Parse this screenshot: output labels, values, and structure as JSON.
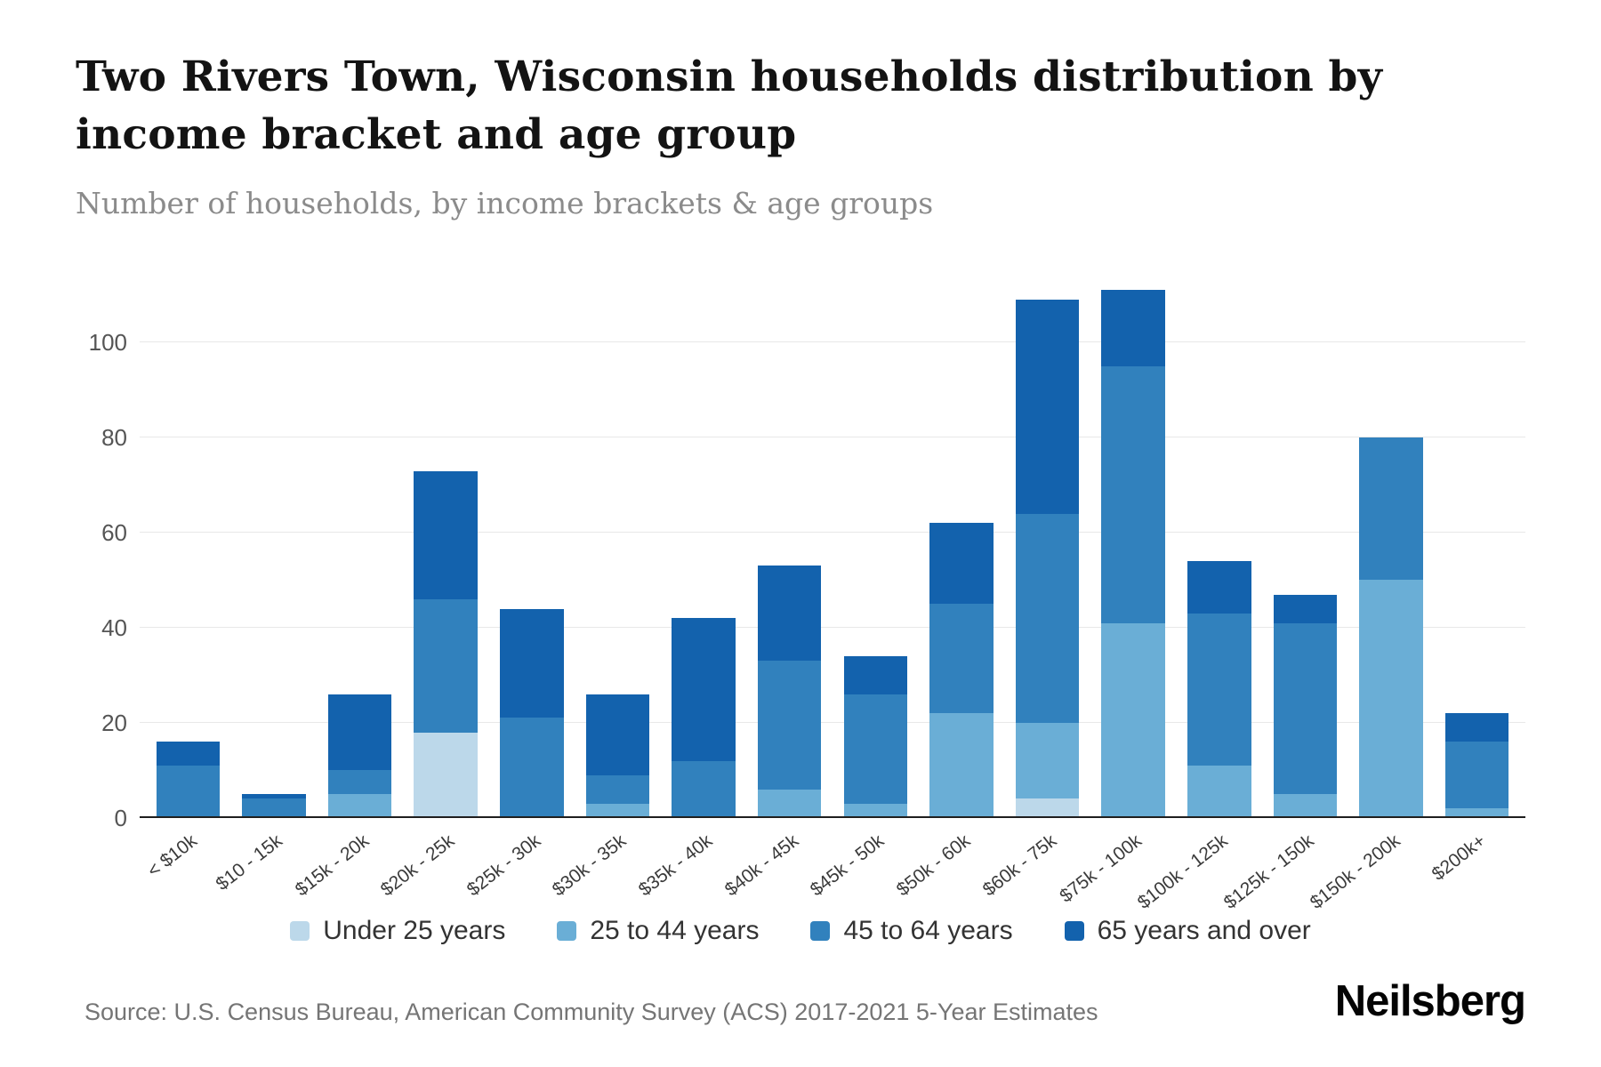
{
  "header": {
    "title": "Two Rivers Town, Wisconsin households distribution by income bracket and age group",
    "subtitle": "Number of households, by income brackets & age groups"
  },
  "footer": {
    "source": "Source: U.S. Census Bureau, American Community Survey (ACS) 2017-2021 5-Year Estimates",
    "logo": "Neilsberg"
  },
  "chart_data": {
    "type": "bar",
    "stacked": true,
    "title": "Two Rivers Town, Wisconsin households distribution by income bracket and age group",
    "subtitle": "Number of households, by income brackets & age groups",
    "xlabel": "",
    "ylabel": "",
    "ylim": [
      0,
      116
    ],
    "yticks": [
      0,
      20,
      40,
      60,
      80,
      100
    ],
    "grid": true,
    "legend_position": "bottom",
    "categories": [
      "< $10k",
      "$10 - 15k",
      "$15k - 20k",
      "$20k - 25k",
      "$25k - 30k",
      "$30k - 35k",
      "$35k - 40k",
      "$40k - 45k",
      "$45k - 50k",
      "$50k - 60k",
      "$60k - 75k",
      "$75k - 100k",
      "$100k - 125k",
      "$125k - 150k",
      "$150k - 200k",
      "$200k+"
    ],
    "series": [
      {
        "name": "Under 25 years",
        "color": "#bcd8ea",
        "values": [
          0,
          0,
          0,
          18,
          0,
          0,
          0,
          0,
          0,
          0,
          4,
          0,
          0,
          0,
          0,
          0
        ]
      },
      {
        "name": "25 to 44 years",
        "color": "#6aaed6",
        "values": [
          0,
          0,
          5,
          0,
          0,
          3,
          0,
          6,
          3,
          22,
          16,
          41,
          11,
          5,
          50,
          2
        ]
      },
      {
        "name": "45 to 64 years",
        "color": "#3181bd",
        "values": [
          11,
          4,
          5,
          28,
          21,
          6,
          12,
          27,
          23,
          23,
          44,
          54,
          32,
          36,
          30,
          14
        ]
      },
      {
        "name": "65 years and over",
        "color": "#1362ad",
        "values": [
          5,
          1,
          16,
          27,
          23,
          17,
          30,
          20,
          8,
          17,
          45,
          16,
          11,
          6,
          0,
          6
        ]
      }
    ]
  }
}
